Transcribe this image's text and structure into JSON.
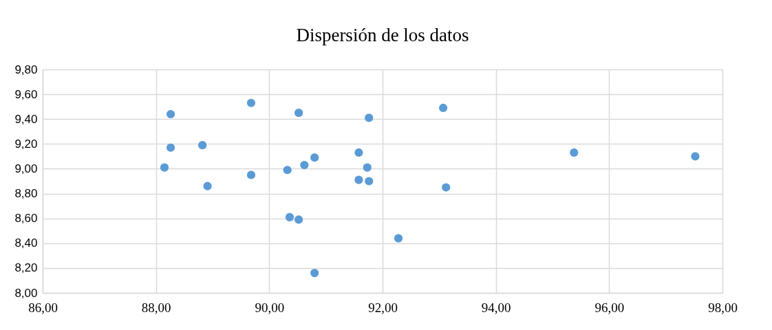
{
  "chart_data": {
    "type": "scatter",
    "title": "Dispersión de los datos",
    "x": [
      88.26,
      88.26,
      88.15,
      88.82,
      88.91,
      89.68,
      89.68,
      90.52,
      91.76,
      93.07,
      91.58,
      90.8,
      90.62,
      91.73,
      90.32,
      91.58,
      91.76,
      93.12,
      90.36,
      90.52,
      92.28,
      90.8,
      95.38,
      97.52
    ],
    "series": [
      {
        "color": "#5b9bd5",
        "values": [
          9.44,
          9.17,
          9.01,
          9.19,
          8.86,
          9.53,
          8.95,
          9.45,
          9.41,
          9.49,
          9.13,
          9.09,
          9.03,
          9.01,
          8.99,
          8.91,
          8.9,
          8.85,
          8.61,
          8.59,
          8.44,
          8.16,
          9.13,
          9.1
        ]
      }
    ],
    "xlim": [
      86,
      98
    ],
    "xticks": [
      {
        "value": 86,
        "label": "86,00"
      },
      {
        "value": 88,
        "label": "88,00"
      },
      {
        "value": 90,
        "label": "90,00"
      },
      {
        "value": 92,
        "label": "92,00"
      },
      {
        "value": 94,
        "label": "94,00"
      },
      {
        "value": 96,
        "label": "96,00"
      },
      {
        "value": 98,
        "label": "98,00"
      }
    ],
    "ylim": [
      8,
      9.8
    ],
    "yticks": [
      {
        "value": 8,
        "label": "8,00"
      },
      {
        "value": 8.2,
        "label": "8,20"
      },
      {
        "value": 8.4,
        "label": "8,40"
      },
      {
        "value": 8.6,
        "label": "8,60"
      },
      {
        "value": 8.8,
        "label": "8,80"
      },
      {
        "value": 9,
        "label": "9,00"
      },
      {
        "value": 9.2,
        "label": "9,20"
      },
      {
        "value": 9.4,
        "label": "9,40"
      },
      {
        "value": 9.6,
        "label": "9,60"
      },
      {
        "value": 9.8,
        "label": "9,80"
      }
    ],
    "grid": true,
    "marker": "circle",
    "legend": false
  }
}
